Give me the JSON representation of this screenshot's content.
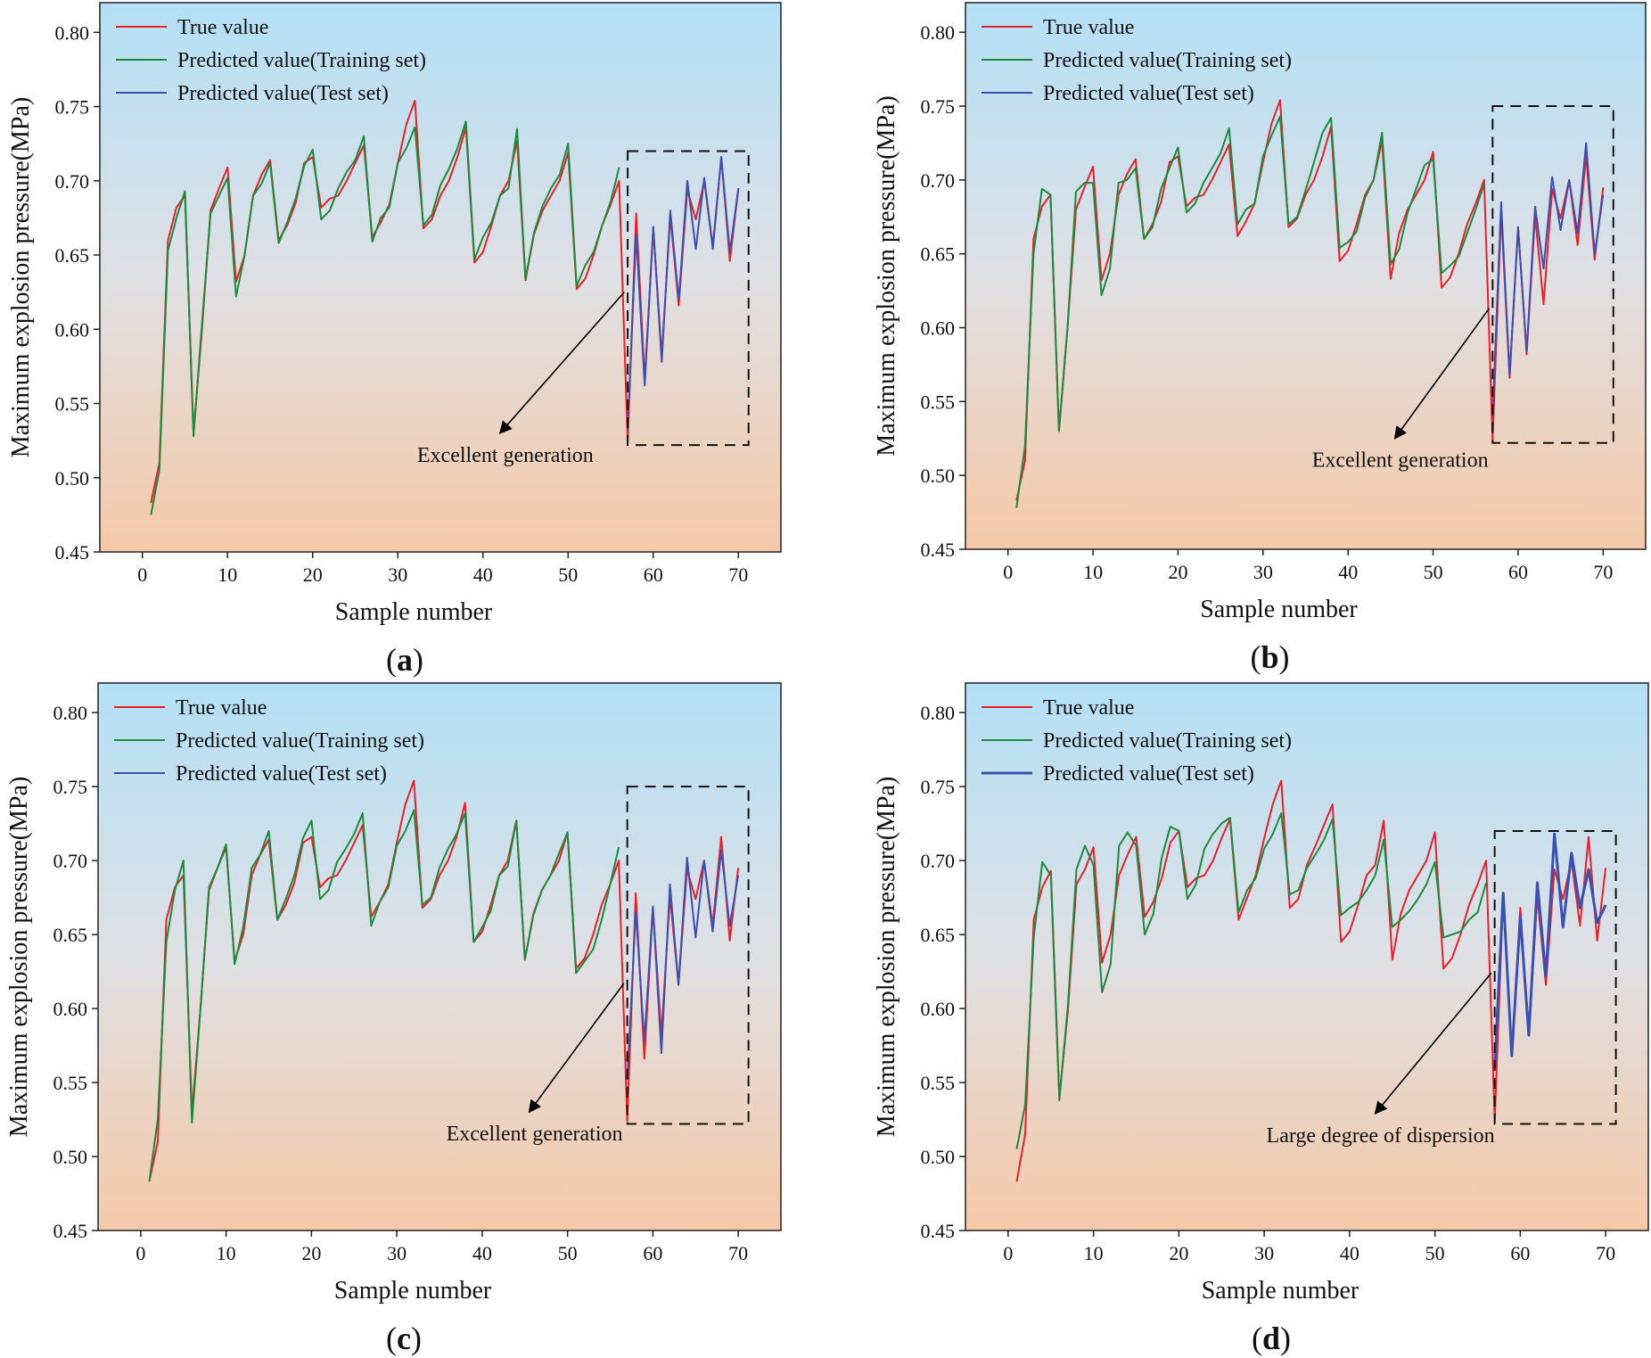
{
  "colors": {
    "true": "#e8202a",
    "train": "#1b8a3c",
    "test": "#3a4fb0",
    "bg_top": "#b3e0f6",
    "bg_mid": "#dfe0e4",
    "bg_bottom": "#f6c9a8"
  },
  "chart_data": [
    {
      "type": "line",
      "panel_label": "a",
      "annotation": "Excellent generation",
      "xlabel": "Sample number",
      "ylabel": "Maximum explosion pressure(MPa)",
      "xlim": [
        -5,
        75
      ],
      "ylim": [
        0.45,
        0.82
      ],
      "xticks": [
        0,
        10,
        20,
        30,
        40,
        50,
        60,
        70
      ],
      "yticks": [
        0.45,
        0.5,
        0.55,
        0.6,
        0.65,
        0.7,
        0.75,
        0.8
      ],
      "test_box": {
        "x": [
          57,
          71.2
        ],
        "y": [
          0.522,
          0.72
        ]
      },
      "arrow": {
        "from": [
          56.6,
          0.625
        ],
        "to": [
          42,
          0.53
        ]
      },
      "legend": [
        "True value",
        "Predicted value(Training set)",
        "Predicted value(Test set)"
      ],
      "series": [
        {
          "name": "True value",
          "x_start": 1,
          "values": [
            0.483,
            0.51,
            0.66,
            0.682,
            0.69,
            0.53,
            0.6,
            0.68,
            0.695,
            0.709,
            0.632,
            0.65,
            0.69,
            0.704,
            0.714,
            0.66,
            0.67,
            0.685,
            0.712,
            0.716,
            0.682,
            0.688,
            0.69,
            0.7,
            0.712,
            0.724,
            0.662,
            0.672,
            0.684,
            0.712,
            0.738,
            0.754,
            0.668,
            0.674,
            0.69,
            0.7,
            0.716,
            0.736,
            0.645,
            0.652,
            0.67,
            0.69,
            0.7,
            0.727,
            0.633,
            0.664,
            0.68,
            0.69,
            0.7,
            0.719,
            0.627,
            0.634,
            0.65,
            0.67,
            0.684,
            0.7,
            0.524,
            0.678,
            0.566,
            0.668,
            0.582,
            0.676,
            0.616,
            0.694,
            0.674,
            0.7,
            0.656,
            0.716,
            0.646,
            0.695
          ]
        },
        {
          "name": "Predicted value(Training set)",
          "x_start": 1,
          "values": [
            0.475,
            0.505,
            0.653,
            0.675,
            0.693,
            0.528,
            0.604,
            0.678,
            0.69,
            0.702,
            0.622,
            0.65,
            0.69,
            0.698,
            0.712,
            0.658,
            0.672,
            0.688,
            0.71,
            0.721,
            0.674,
            0.68,
            0.695,
            0.706,
            0.714,
            0.73,
            0.659,
            0.675,
            0.682,
            0.712,
            0.722,
            0.736,
            0.67,
            0.677,
            0.697,
            0.708,
            0.722,
            0.74,
            0.647,
            0.662,
            0.672,
            0.69,
            0.695,
            0.735,
            0.634,
            0.665,
            0.683,
            0.695,
            0.704,
            0.725,
            0.629,
            0.643,
            0.652,
            0.67,
            0.686,
            0.709
          ]
        },
        {
          "name": "Predicted value(Test set)",
          "x_start": 57,
          "values": [
            0.532,
            0.664,
            0.562,
            0.669,
            0.578,
            0.68,
            0.62,
            0.7,
            0.654,
            0.702,
            0.654,
            0.716,
            0.652,
            0.695
          ]
        }
      ]
    },
    {
      "type": "line",
      "panel_label": "b",
      "annotation": "Excellent generation",
      "xlabel": "Sample number",
      "ylabel": "Maximum explosion pressure(MPa)",
      "xlim": [
        -5,
        75
      ],
      "ylim": [
        0.45,
        0.82
      ],
      "xticks": [
        0,
        10,
        20,
        30,
        40,
        50,
        60,
        70
      ],
      "yticks": [
        0.45,
        0.5,
        0.55,
        0.6,
        0.65,
        0.7,
        0.75,
        0.8
      ],
      "test_box": {
        "x": [
          57,
          71.2
        ],
        "y": [
          0.522,
          0.75
        ]
      },
      "arrow": {
        "from": [
          56.6,
          0.613
        ],
        "to": [
          45.5,
          0.525
        ]
      },
      "legend": [
        "True value",
        "Predicted value(Training set)",
        "Predicted value(Test set)"
      ],
      "series": [
        {
          "name": "True value",
          "x_start": 1,
          "values": [
            0.483,
            0.51,
            0.66,
            0.682,
            0.69,
            0.53,
            0.6,
            0.68,
            0.695,
            0.709,
            0.632,
            0.65,
            0.69,
            0.704,
            0.714,
            0.66,
            0.67,
            0.685,
            0.712,
            0.716,
            0.682,
            0.688,
            0.69,
            0.7,
            0.712,
            0.724,
            0.662,
            0.672,
            0.684,
            0.712,
            0.738,
            0.754,
            0.668,
            0.674,
            0.69,
            0.7,
            0.716,
            0.736,
            0.645,
            0.652,
            0.67,
            0.69,
            0.7,
            0.727,
            0.633,
            0.664,
            0.68,
            0.69,
            0.7,
            0.719,
            0.627,
            0.634,
            0.65,
            0.67,
            0.684,
            0.7,
            0.524,
            0.678,
            0.566,
            0.668,
            0.582,
            0.676,
            0.616,
            0.694,
            0.674,
            0.7,
            0.656,
            0.716,
            0.646,
            0.695
          ]
        },
        {
          "name": "Predicted value(Training set)",
          "x_start": 1,
          "values": [
            0.478,
            0.52,
            0.65,
            0.694,
            0.69,
            0.53,
            0.6,
            0.692,
            0.698,
            0.698,
            0.622,
            0.64,
            0.698,
            0.7,
            0.708,
            0.66,
            0.668,
            0.694,
            0.708,
            0.722,
            0.678,
            0.684,
            0.698,
            0.708,
            0.718,
            0.735,
            0.67,
            0.68,
            0.684,
            0.716,
            0.73,
            0.743,
            0.67,
            0.675,
            0.693,
            0.712,
            0.732,
            0.742,
            0.654,
            0.658,
            0.665,
            0.688,
            0.7,
            0.732,
            0.643,
            0.653,
            0.678,
            0.694,
            0.71,
            0.714,
            0.637,
            0.642,
            0.648,
            0.664,
            0.68,
            0.697
          ]
        },
        {
          "name": "Predicted value(Test set)",
          "x_start": 57,
          "values": [
            0.54,
            0.685,
            0.568,
            0.668,
            0.584,
            0.682,
            0.64,
            0.702,
            0.666,
            0.7,
            0.664,
            0.725,
            0.65,
            0.69
          ]
        }
      ]
    },
    {
      "type": "line",
      "panel_label": "c",
      "annotation": "Excellent generation",
      "xlabel": "Sample number",
      "ylabel": "Maximum explosion pressure(MPa)",
      "xlim": [
        -5,
        75
      ],
      "ylim": [
        0.45,
        0.82
      ],
      "xticks": [
        0,
        10,
        20,
        30,
        40,
        50,
        60,
        70
      ],
      "yticks": [
        0.45,
        0.5,
        0.55,
        0.6,
        0.65,
        0.7,
        0.75,
        0.8
      ],
      "test_box": {
        "x": [
          57,
          71.2
        ],
        "y": [
          0.522,
          0.75
        ]
      },
      "arrow": {
        "from": [
          56.6,
          0.617
        ],
        "to": [
          45.5,
          0.53
        ]
      },
      "legend": [
        "True value",
        "Predicted value(Training set)",
        "Predicted value(Test set)"
      ],
      "series": [
        {
          "name": "True value",
          "x_start": 1,
          "values": [
            0.483,
            0.51,
            0.66,
            0.682,
            0.69,
            0.53,
            0.6,
            0.68,
            0.695,
            0.709,
            0.632,
            0.65,
            0.69,
            0.704,
            0.714,
            0.66,
            0.67,
            0.685,
            0.712,
            0.716,
            0.682,
            0.688,
            0.69,
            0.7,
            0.712,
            0.724,
            0.662,
            0.672,
            0.684,
            0.712,
            0.738,
            0.754,
            0.668,
            0.674,
            0.69,
            0.7,
            0.716,
            0.739,
            0.645,
            0.652,
            0.67,
            0.69,
            0.7,
            0.727,
            0.633,
            0.664,
            0.68,
            0.69,
            0.7,
            0.719,
            0.627,
            0.634,
            0.65,
            0.67,
            0.684,
            0.7,
            0.524,
            0.678,
            0.566,
            0.668,
            0.582,
            0.676,
            0.616,
            0.694,
            0.674,
            0.7,
            0.656,
            0.716,
            0.646,
            0.695
          ]
        },
        {
          "name": "Predicted value(Training set)",
          "x_start": 1,
          "values": [
            0.483,
            0.525,
            0.645,
            0.68,
            0.7,
            0.523,
            0.6,
            0.682,
            0.695,
            0.711,
            0.63,
            0.655,
            0.695,
            0.704,
            0.72,
            0.66,
            0.674,
            0.69,
            0.715,
            0.727,
            0.674,
            0.68,
            0.699,
            0.708,
            0.718,
            0.732,
            0.656,
            0.672,
            0.682,
            0.71,
            0.72,
            0.734,
            0.67,
            0.675,
            0.695,
            0.708,
            0.718,
            0.732,
            0.645,
            0.655,
            0.666,
            0.69,
            0.696,
            0.727,
            0.633,
            0.663,
            0.68,
            0.69,
            0.705,
            0.719,
            0.624,
            0.632,
            0.64,
            0.66,
            0.684,
            0.709
          ]
        },
        {
          "name": "Predicted value(Test set)",
          "x_start": 57,
          "values": [
            0.552,
            0.666,
            0.578,
            0.669,
            0.57,
            0.684,
            0.616,
            0.702,
            0.648,
            0.7,
            0.652,
            0.707,
            0.656,
            0.69
          ]
        }
      ]
    },
    {
      "type": "line",
      "panel_label": "d",
      "annotation": "Large degree of dispersion",
      "xlabel": "Sample number",
      "ylabel": "Maximum explosion pressure(MPa)",
      "xlim": [
        -5,
        75
      ],
      "ylim": [
        0.45,
        0.82
      ],
      "xticks": [
        0,
        10,
        20,
        30,
        40,
        50,
        60,
        70
      ],
      "yticks": [
        0.45,
        0.5,
        0.55,
        0.6,
        0.65,
        0.7,
        0.75,
        0.8
      ],
      "test_box": {
        "x": [
          57,
          71.2
        ],
        "y": [
          0.522,
          0.72
        ]
      },
      "arrow": {
        "from": [
          56.6,
          0.624
        ],
        "to": [
          43,
          0.529
        ]
      },
      "legend": [
        "True value",
        "Predicted value(Training set)",
        "Predicted value(Test set)"
      ],
      "series": [
        {
          "name": "True value",
          "x_start": 1,
          "values": [
            0.483,
            0.515,
            0.66,
            0.682,
            0.693,
            0.54,
            0.598,
            0.684,
            0.694,
            0.709,
            0.631,
            0.65,
            0.69,
            0.704,
            0.716,
            0.662,
            0.672,
            0.688,
            0.712,
            0.72,
            0.682,
            0.688,
            0.69,
            0.7,
            0.715,
            0.728,
            0.66,
            0.675,
            0.69,
            0.715,
            0.738,
            0.754,
            0.668,
            0.674,
            0.697,
            0.71,
            0.724,
            0.738,
            0.645,
            0.652,
            0.67,
            0.69,
            0.697,
            0.727,
            0.633,
            0.664,
            0.68,
            0.69,
            0.7,
            0.719,
            0.627,
            0.634,
            0.65,
            0.67,
            0.684,
            0.7,
            0.524,
            0.678,
            0.568,
            0.668,
            0.582,
            0.676,
            0.616,
            0.694,
            0.674,
            0.7,
            0.656,
            0.716,
            0.646,
            0.695
          ]
        },
        {
          "name": "Predicted value(Training set)",
          "x_start": 1,
          "values": [
            0.505,
            0.535,
            0.648,
            0.699,
            0.69,
            0.538,
            0.602,
            0.694,
            0.71,
            0.697,
            0.611,
            0.63,
            0.71,
            0.719,
            0.71,
            0.65,
            0.664,
            0.702,
            0.723,
            0.72,
            0.674,
            0.684,
            0.708,
            0.718,
            0.725,
            0.729,
            0.665,
            0.68,
            0.688,
            0.708,
            0.718,
            0.732,
            0.677,
            0.68,
            0.695,
            0.704,
            0.714,
            0.728,
            0.663,
            0.668,
            0.672,
            0.68,
            0.69,
            0.714,
            0.655,
            0.66,
            0.666,
            0.674,
            0.684,
            0.699,
            0.648,
            0.65,
            0.652,
            0.66,
            0.665,
            0.685
          ]
        },
        {
          "name": "Predicted value(Test set)",
          "x_start": 57,
          "values": [
            0.56,
            0.678,
            0.568,
            0.662,
            0.582,
            0.685,
            0.622,
            0.718,
            0.655,
            0.705,
            0.668,
            0.694,
            0.658,
            0.67
          ]
        }
      ]
    }
  ]
}
